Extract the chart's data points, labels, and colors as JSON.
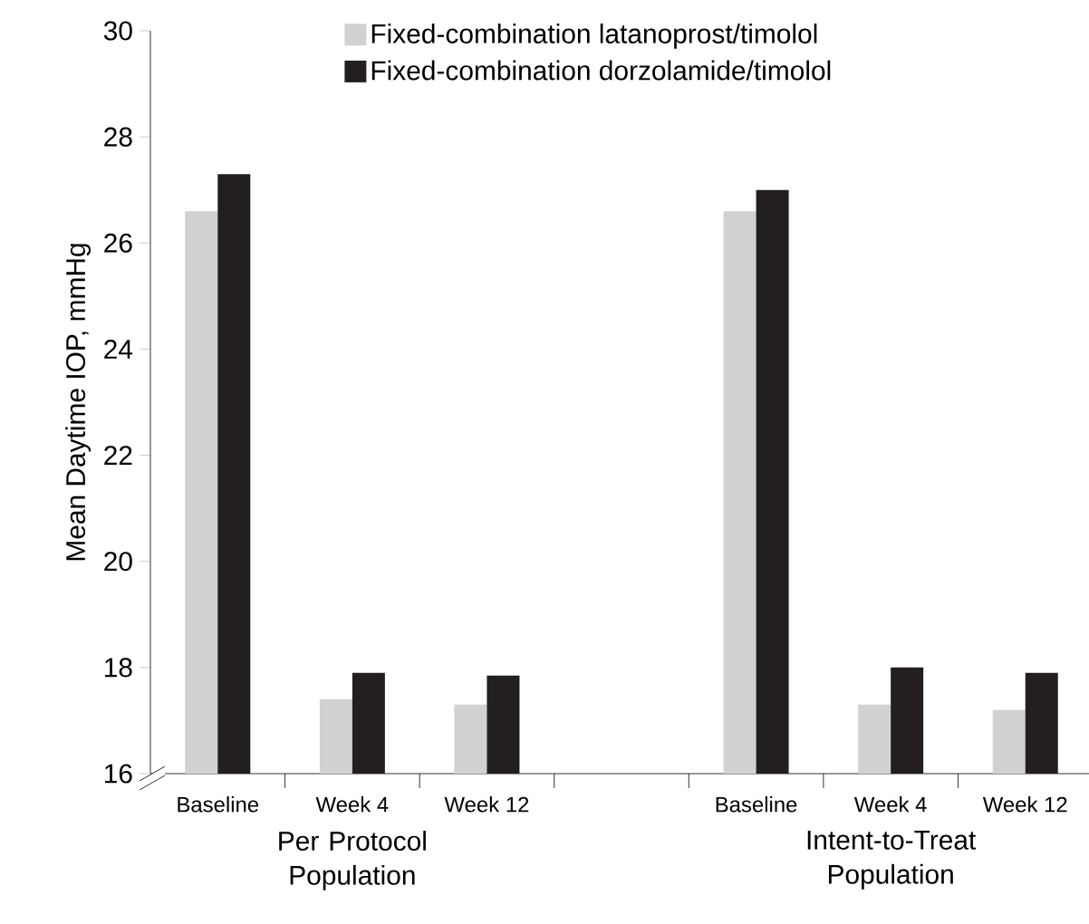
{
  "chart_data": {
    "type": "bar",
    "ylabel": "Mean Daytime IOP, mmHg",
    "categories": [
      "Baseline",
      "Week 4",
      "Week 12",
      null,
      "Baseline",
      "Week 4",
      "Week 12"
    ],
    "series": [
      {
        "name": "Fixed-combination latanoprost/timolol",
        "color": "#d0d1d3",
        "values": [
          26.6,
          17.4,
          17.3,
          null,
          26.6,
          17.3,
          17.2
        ]
      },
      {
        "name": "Fixed-combination dorzolamide/timolol",
        "color": "#231f20",
        "values": [
          27.3,
          17.9,
          17.85,
          null,
          27.0,
          18.0,
          17.9
        ]
      }
    ],
    "ylim": [
      16,
      30
    ],
    "yticks": [
      16,
      18,
      20,
      22,
      24,
      26,
      28,
      30
    ],
    "legend": "top right",
    "annotations": [
      "Per Protocol Population",
      "Intent-to-Treat Population"
    ]
  }
}
